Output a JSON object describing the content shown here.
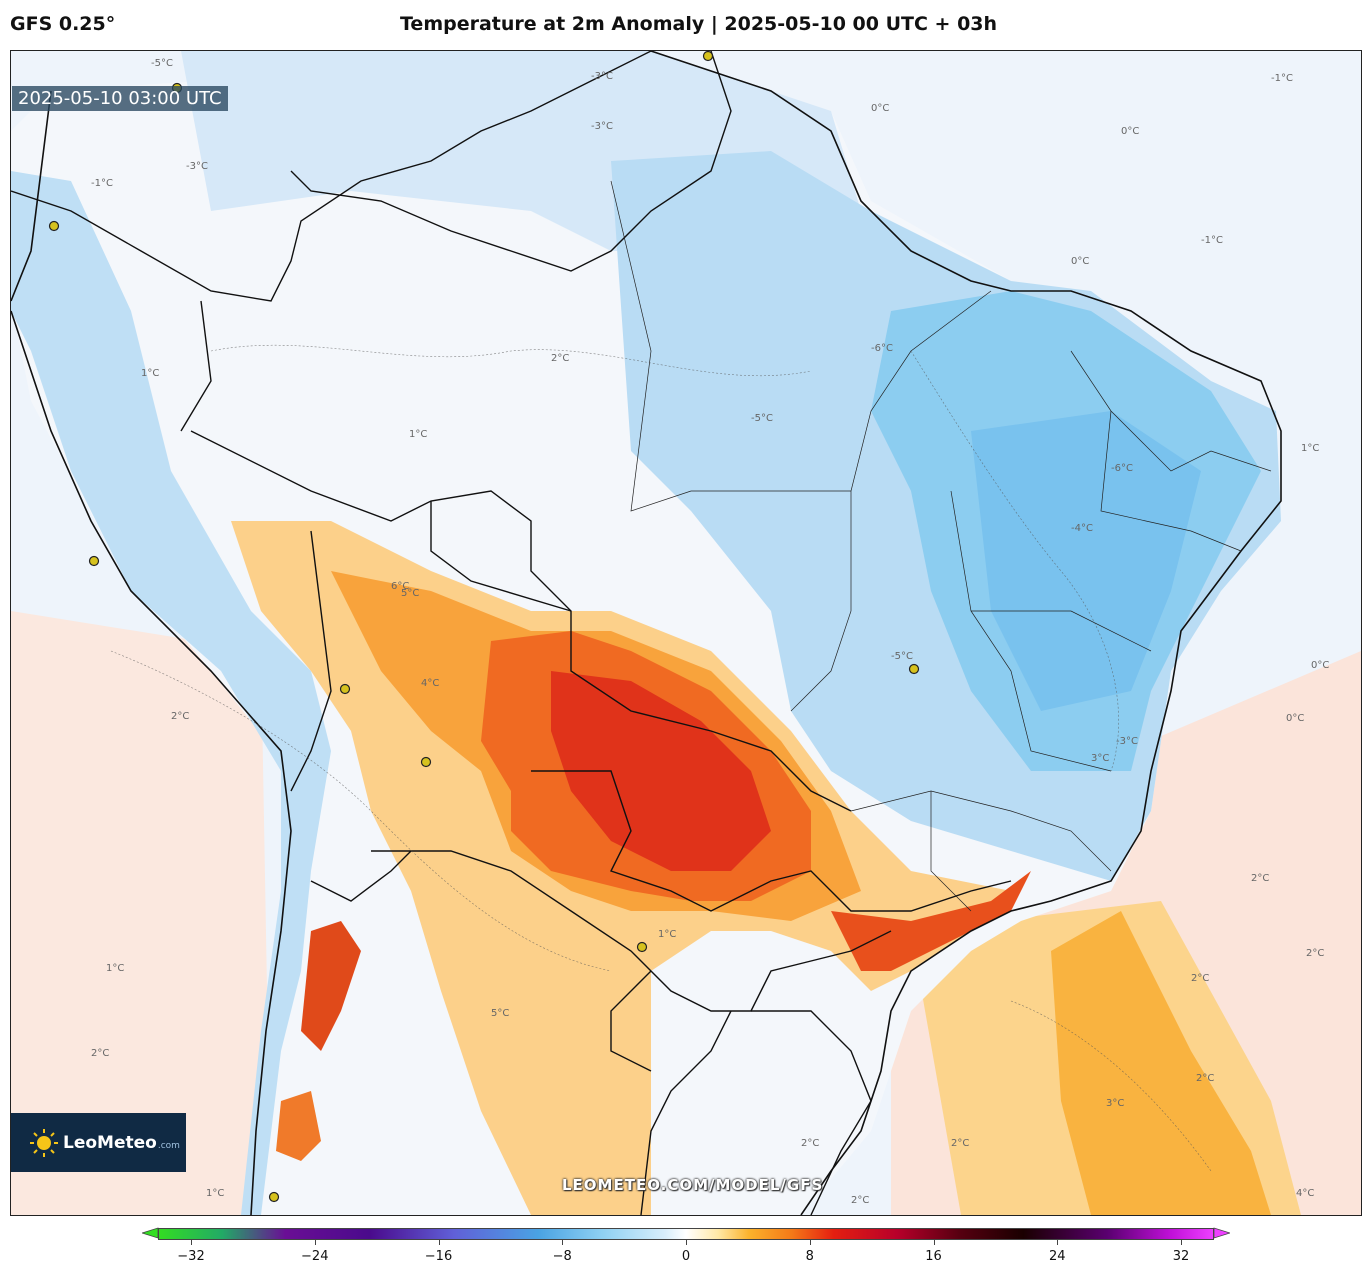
{
  "header": {
    "model": "GFS 0.25°",
    "title": "Temperature at 2m Anomaly | 2025-05-10 00 UTC + 03h"
  },
  "map": {
    "valid_time": "2025-05-10 03:00 UTC",
    "watermark": "LEOMETEO.COM/MODEL/GFS",
    "logo_text": "LeoMeteo",
    "logo_suffix": ".com",
    "contour_labels": [
      "-5°C",
      "-3°C",
      "-3°C",
      "-1°C",
      "-6°C",
      "-4°C",
      "-5°C",
      "-6°C",
      "-5°C",
      "-3°C",
      "-3°C",
      "-1°C",
      "0°C",
      "0°C",
      "0°C",
      "0°C",
      "0°C",
      "-1°C",
      "1°C",
      "1°C",
      "2°C",
      "1°C",
      "2°C",
      "3°C",
      "5°C",
      "6°C",
      "4°C",
      "2°C",
      "1°C",
      "2°C",
      "2°C",
      "3°C",
      "2°C",
      "2°C",
      "4°C",
      "1°C",
      "5°C",
      "2°C",
      "2°C",
      "2°C",
      "1°C"
    ],
    "colors": {
      "strong_negative": "#7fc6ef",
      "negative": "#b8dcf5",
      "slight_negative": "#dbeaf8",
      "near_zero": "#f4f7fb",
      "slight_positive": "#fbe4da",
      "positive": "#fcd08a",
      "warm": "#f8a33c",
      "hot": "#f06a22",
      "very_hot": "#e0331a",
      "border": "#111111",
      "city": "#d6c21e"
    }
  },
  "colorbar": {
    "ticks": [
      "−32",
      "−24",
      "−16",
      "−8",
      "0",
      "8",
      "16",
      "24",
      "32"
    ],
    "min": -32,
    "max": 32
  }
}
